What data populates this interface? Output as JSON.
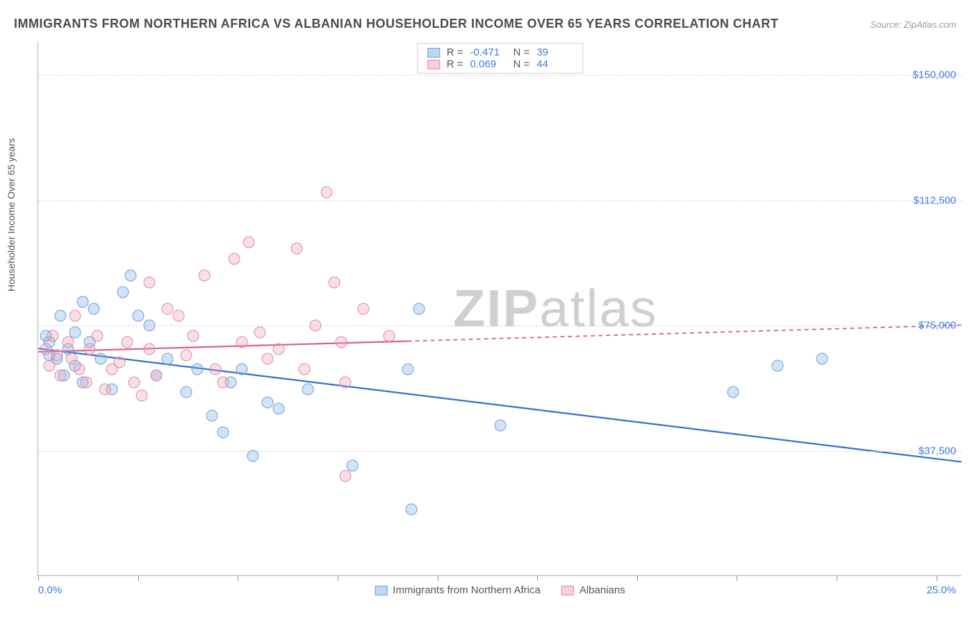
{
  "title": "IMMIGRANTS FROM NORTHERN AFRICA VS ALBANIAN HOUSEHOLDER INCOME OVER 65 YEARS CORRELATION CHART",
  "source": "Source: ZipAtlas.com",
  "watermark": {
    "bold": "ZIP",
    "rest": "atlas"
  },
  "chart": {
    "type": "scatter",
    "ylabel": "Householder Income Over 65 years",
    "xlim": [
      0,
      25
    ],
    "ylim": [
      0,
      160000
    ],
    "xlabel_min": "0.0%",
    "xlabel_max": "25.0%",
    "yticks": [
      {
        "v": 37500,
        "label": "$37,500"
      },
      {
        "v": 75000,
        "label": "$75,000"
      },
      {
        "v": 112500,
        "label": "$112,500"
      },
      {
        "v": 150000,
        "label": "$150,000"
      }
    ],
    "xticks": [
      0,
      2.7,
      5.4,
      8.1,
      10.8,
      13.5,
      16.2,
      18.9,
      21.6,
      24.3
    ],
    "plot_bg": "#ffffff",
    "grid_color": "#d8d8d8",
    "watermark_color": "#cfcfcf",
    "axis_label_color": "#3a7ae0",
    "series": [
      {
        "name": "Immigrants from Northern Africa",
        "color_fill": "rgba(130,174,231,0.35)",
        "color_stroke": "#6a9fd8",
        "color_line": "#2f6fd0",
        "R": "-0.471",
        "N": "39",
        "trend": {
          "x1": 0,
          "y1": 68000,
          "x2": 25,
          "y2": 34000,
          "solid_until": 25
        },
        "points": [
          [
            0.2,
            72000
          ],
          [
            0.3,
            66000
          ],
          [
            0.3,
            70000
          ],
          [
            0.5,
            65000
          ],
          [
            0.6,
            78000
          ],
          [
            0.7,
            60000
          ],
          [
            0.8,
            68000
          ],
          [
            1.0,
            73000
          ],
          [
            1.0,
            63000
          ],
          [
            1.2,
            82000
          ],
          [
            1.2,
            58000
          ],
          [
            1.4,
            70000
          ],
          [
            1.5,
            80000
          ],
          [
            1.7,
            65000
          ],
          [
            2.0,
            56000
          ],
          [
            2.3,
            85000
          ],
          [
            2.5,
            90000
          ],
          [
            2.7,
            78000
          ],
          [
            3.0,
            75000
          ],
          [
            3.2,
            60000
          ],
          [
            3.5,
            65000
          ],
          [
            4.0,
            55000
          ],
          [
            4.3,
            62000
          ],
          [
            4.7,
            48000
          ],
          [
            5.0,
            43000
          ],
          [
            5.2,
            58000
          ],
          [
            5.5,
            62000
          ],
          [
            5.8,
            36000
          ],
          [
            6.2,
            52000
          ],
          [
            6.5,
            50000
          ],
          [
            7.3,
            56000
          ],
          [
            8.5,
            33000
          ],
          [
            10.3,
            80000
          ],
          [
            10.0,
            62000
          ],
          [
            10.1,
            20000
          ],
          [
            12.5,
            45000
          ],
          [
            18.8,
            55000
          ],
          [
            20.0,
            63000
          ],
          [
            21.2,
            65000
          ]
        ]
      },
      {
        "name": "Albanians",
        "color_fill": "rgba(240,160,180,0.35)",
        "color_stroke": "#d88ca0",
        "color_line": "#d85f82",
        "R": "0.069",
        "N": "44",
        "trend": {
          "x1": 0,
          "y1": 67000,
          "x2": 25,
          "y2": 75000,
          "solid_until": 10
        },
        "points": [
          [
            0.2,
            68000
          ],
          [
            0.3,
            63000
          ],
          [
            0.4,
            72000
          ],
          [
            0.5,
            66000
          ],
          [
            0.6,
            60000
          ],
          [
            0.8,
            70000
          ],
          [
            0.9,
            65000
          ],
          [
            1.0,
            78000
          ],
          [
            1.1,
            62000
          ],
          [
            1.3,
            58000
          ],
          [
            1.4,
            68000
          ],
          [
            1.6,
            72000
          ],
          [
            1.8,
            56000
          ],
          [
            2.0,
            62000
          ],
          [
            2.2,
            64000
          ],
          [
            2.4,
            70000
          ],
          [
            2.6,
            58000
          ],
          [
            2.8,
            54000
          ],
          [
            3.0,
            68000
          ],
          [
            3.0,
            88000
          ],
          [
            3.2,
            60000
          ],
          [
            3.5,
            80000
          ],
          [
            3.8,
            78000
          ],
          [
            4.0,
            66000
          ],
          [
            4.2,
            72000
          ],
          [
            4.5,
            90000
          ],
          [
            4.8,
            62000
          ],
          [
            5.0,
            58000
          ],
          [
            5.3,
            95000
          ],
          [
            5.5,
            70000
          ],
          [
            5.7,
            100000
          ],
          [
            6.0,
            73000
          ],
          [
            6.2,
            65000
          ],
          [
            6.5,
            68000
          ],
          [
            7.0,
            98000
          ],
          [
            7.2,
            62000
          ],
          [
            7.5,
            75000
          ],
          [
            7.8,
            115000
          ],
          [
            8.0,
            88000
          ],
          [
            8.2,
            70000
          ],
          [
            8.3,
            30000
          ],
          [
            8.3,
            58000
          ],
          [
            8.8,
            80000
          ],
          [
            9.5,
            72000
          ]
        ]
      }
    ],
    "legend_top_labels": {
      "R": "R =",
      "N": "N ="
    }
  }
}
